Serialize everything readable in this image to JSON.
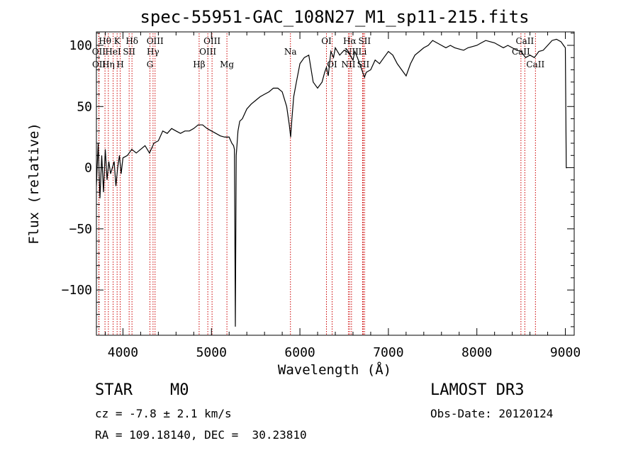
{
  "chart_data": {
    "type": "line",
    "title": "spec-55951-GAC_108N27_M1_sp11-215.fits",
    "xlabel": "Wavelength (Å)",
    "ylabel": "Flux (relative)",
    "xlim": [
      3700,
      9100
    ],
    "ylim": [
      -137,
      111
    ],
    "xticks": [
      4000,
      5000,
      6000,
      7000,
      8000,
      9000
    ],
    "yticks": [
      -100,
      -50,
      0,
      50,
      100
    ],
    "grid": false,
    "series": [
      {
        "line_color": "#000000",
        "x": [
          3700,
          3720,
          3740,
          3760,
          3780,
          3800,
          3820,
          3840,
          3860,
          3880,
          3900,
          3920,
          3940,
          3960,
          3980,
          4000,
          4050,
          4100,
          4150,
          4200,
          4250,
          4300,
          4350,
          4400,
          4450,
          4500,
          4550,
          4600,
          4650,
          4700,
          4750,
          4800,
          4850,
          4900,
          4950,
          5000,
          5050,
          5100,
          5150,
          5200,
          5230,
          5250,
          5260,
          5270,
          5275,
          5280,
          5290,
          5300,
          5320,
          5350,
          5400,
          5450,
          5500,
          5550,
          5600,
          5650,
          5700,
          5750,
          5800,
          5850,
          5880,
          5895,
          5910,
          5930,
          5960,
          6000,
          6050,
          6100,
          6150,
          6200,
          6250,
          6280,
          6300,
          6320,
          6350,
          6380,
          6400,
          6450,
          6500,
          6550,
          6600,
          6620,
          6650,
          6700,
          6730,
          6750,
          6800,
          6850,
          6900,
          6950,
          7000,
          7050,
          7100,
          7150,
          7200,
          7250,
          7300,
          7350,
          7400,
          7450,
          7500,
          7550,
          7600,
          7650,
          7700,
          7750,
          7800,
          7850,
          7900,
          7950,
          8000,
          8050,
          8100,
          8150,
          8200,
          8250,
          8300,
          8350,
          8400,
          8450,
          8500,
          8550,
          8600,
          8650,
          8700,
          8750,
          8800,
          8850,
          8900,
          8950,
          8980,
          9000,
          9010,
          9020
        ],
        "y": [
          -15,
          20,
          -25,
          10,
          -20,
          15,
          -10,
          5,
          -5,
          0,
          5,
          -15,
          0,
          10,
          -5,
          8,
          10,
          15,
          12,
          15,
          18,
          12,
          20,
          22,
          30,
          28,
          32,
          30,
          28,
          30,
          30,
          32,
          35,
          35,
          32,
          30,
          28,
          26,
          25,
          25,
          20,
          18,
          15,
          -130,
          -60,
          10,
          20,
          30,
          38,
          40,
          48,
          52,
          55,
          58,
          60,
          62,
          65,
          65,
          62,
          50,
          35,
          25,
          40,
          58,
          70,
          85,
          90,
          92,
          70,
          65,
          70,
          78,
          82,
          75,
          95,
          90,
          98,
          92,
          96,
          94,
          88,
          95,
          90,
          80,
          74,
          78,
          80,
          88,
          85,
          90,
          95,
          92,
          85,
          80,
          75,
          85,
          92,
          95,
          98,
          100,
          104,
          102,
          100,
          98,
          100,
          98,
          97,
          96,
          98,
          99,
          100,
          102,
          104,
          103,
          102,
          100,
          98,
          100,
          98,
          96,
          95,
          90,
          92,
          90,
          95,
          96,
          100,
          104,
          105,
          103,
          100,
          98,
          0,
          0
        ]
      }
    ],
    "spectral_lines": [
      {
        "label": "Hθ",
        "wavelength": 3797,
        "row": 1
      },
      {
        "label": "OII",
        "wavelength": 3727,
        "row": 2
      },
      {
        "label": "OII",
        "wavelength": 3729,
        "row": 3
      },
      {
        "label": "K",
        "wavelength": 3934,
        "row": 1
      },
      {
        "label": "HeI",
        "wavelength": 3889,
        "row": 2
      },
      {
        "label": "Hη",
        "wavelength": 3835,
        "row": 3
      },
      {
        "label": "Hδ",
        "wavelength": 4102,
        "row": 1
      },
      {
        "label": "SII",
        "wavelength": 4070,
        "row": 2
      },
      {
        "label": "H",
        "wavelength": 3969,
        "row": 3
      },
      {
        "label": "OIII",
        "wavelength": 4363,
        "row": 1
      },
      {
        "label": "Hγ",
        "wavelength": 4340,
        "row": 2
      },
      {
        "label": "G",
        "wavelength": 4305,
        "row": 3
      },
      {
        "label": "OIII",
        "wavelength": 5007,
        "row": 1
      },
      {
        "label": "OIII",
        "wavelength": 4959,
        "row": 2
      },
      {
        "label": "Hβ",
        "wavelength": 4861,
        "row": 3
      },
      {
        "label": "Mg",
        "wavelength": 5175,
        "row": 3
      },
      {
        "label": "Na",
        "wavelength": 5893,
        "row": 2
      },
      {
        "label": "OI",
        "wavelength": 6300,
        "row": 1
      },
      {
        "label": "OI",
        "wavelength": 6364,
        "row": 3
      },
      {
        "label": "Hα",
        "wavelength": 6563,
        "row": 1
      },
      {
        "label": "SII",
        "wavelength": 6731,
        "row": 1
      },
      {
        "label": "NII",
        "wavelength": 6583,
        "row": 2
      },
      {
        "label": "Li",
        "wavelength": 6708,
        "row": 2
      },
      {
        "label": "NII",
        "wavelength": 6548,
        "row": 3
      },
      {
        "label": "SII",
        "wavelength": 6716,
        "row": 3
      },
      {
        "label": "CaII",
        "wavelength": 8542,
        "row": 1
      },
      {
        "label": "CaII",
        "wavelength": 8498,
        "row": 2
      },
      {
        "label": "CaII",
        "wavelength": 8662,
        "row": 3
      }
    ],
    "line_marker_color": "#cc0000",
    "axis_color": "#000000"
  },
  "info": {
    "object_class": "STAR",
    "subclass": "M0",
    "survey": "LAMOST DR3",
    "redshift_text": "cz = -7.8 ± 2.1 km/s",
    "obs_date_text": "Obs-Date: 20120124",
    "coords_text": "RA = 109.18140, DEC =  30.23810"
  }
}
